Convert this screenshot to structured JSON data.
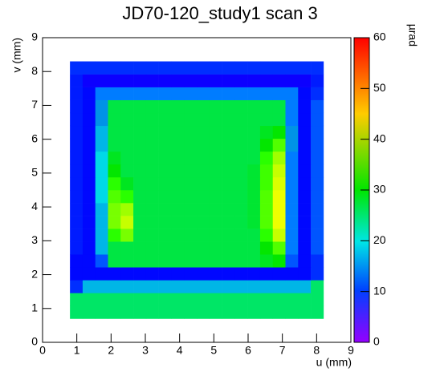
{
  "chart_data": {
    "type": "heatmap",
    "title": "JD70-120_study1 scan 3",
    "x_label": "u (mm)",
    "y_label": "v (mm)",
    "z_label": "µrad",
    "xlim": [
      0,
      9
    ],
    "ylim": [
      0,
      9
    ],
    "zlim": [
      0,
      60
    ],
    "xticks": [
      0,
      1,
      2,
      3,
      4,
      5,
      6,
      7,
      8,
      9
    ],
    "yticks": [
      0,
      1,
      2,
      3,
      4,
      5,
      6,
      7,
      8,
      9
    ],
    "zticks": [
      0,
      10,
      20,
      30,
      40,
      50,
      60
    ],
    "xbins": [
      0.8,
      1.17,
      1.54,
      1.91,
      2.28,
      2.65,
      3.02,
      3.39,
      3.76,
      4.13,
      4.5,
      4.87,
      5.24,
      5.61,
      5.98,
      6.35,
      6.72,
      7.09,
      7.46,
      7.83,
      8.2
    ],
    "ybins": [
      0.7,
      1.08,
      1.46,
      1.84,
      2.22,
      2.6,
      2.98,
      3.36,
      3.74,
      4.12,
      4.5,
      4.88,
      5.26,
      5.64,
      6.02,
      6.4,
      6.78,
      7.16,
      7.54,
      7.92,
      8.3
    ],
    "z": [
      [
        28,
        28,
        28,
        28,
        28,
        28,
        28,
        28,
        28,
        28,
        28,
        28,
        28,
        28,
        28,
        28,
        28,
        28,
        28,
        28
      ],
      [
        28,
        28,
        28,
        28,
        28,
        28,
        28,
        28,
        28,
        28,
        28,
        28,
        28,
        28,
        28,
        28,
        28,
        28,
        28,
        28
      ],
      [
        10,
        18,
        18,
        18,
        18,
        18,
        18,
        18,
        18,
        18,
        18,
        18,
        18,
        18,
        18,
        18,
        18,
        18,
        18,
        28
      ],
      [
        8,
        8,
        8,
        8,
        8,
        8,
        8,
        8,
        8,
        8,
        8,
        8,
        8,
        8,
        8,
        8,
        8,
        8,
        8,
        10
      ],
      [
        8,
        8,
        12,
        30,
        30,
        30,
        30,
        30,
        30,
        30,
        30,
        30,
        30,
        30,
        30,
        32,
        34,
        12,
        8,
        10
      ],
      [
        9,
        8,
        18,
        30,
        30,
        30,
        30,
        30,
        30,
        30,
        30,
        30,
        30,
        30,
        30,
        34,
        38,
        14,
        8,
        12
      ],
      [
        9,
        8,
        18,
        36,
        40,
        30,
        30,
        30,
        30,
        30,
        30,
        30,
        30,
        30,
        30,
        36,
        44,
        14,
        8,
        12
      ],
      [
        9,
        8,
        18,
        40,
        44,
        30,
        30,
        30,
        30,
        30,
        30,
        30,
        30,
        30,
        31,
        38,
        46,
        14,
        8,
        12
      ],
      [
        9,
        8,
        18,
        40,
        42,
        30,
        30,
        30,
        30,
        30,
        30,
        30,
        30,
        30,
        31,
        38,
        46,
        14,
        8,
        12
      ],
      [
        9,
        8,
        20,
        38,
        36,
        30,
        30,
        30,
        30,
        30,
        30,
        30,
        30,
        30,
        31,
        38,
        46,
        14,
        8,
        12
      ],
      [
        9,
        8,
        20,
        36,
        32,
        30,
        30,
        30,
        30,
        30,
        30,
        30,
        30,
        30,
        31,
        37,
        45,
        14,
        8,
        12
      ],
      [
        9,
        8,
        20,
        34,
        30,
        30,
        30,
        30,
        30,
        30,
        30,
        30,
        30,
        30,
        31,
        37,
        44,
        14,
        8,
        12
      ],
      [
        9,
        8,
        20,
        32,
        30,
        30,
        30,
        30,
        30,
        30,
        30,
        30,
        30,
        30,
        30,
        36,
        42,
        14,
        8,
        12
      ],
      [
        9,
        8,
        18,
        30,
        30,
        30,
        30,
        30,
        30,
        30,
        30,
        30,
        30,
        30,
        30,
        34,
        38,
        16,
        8,
        12
      ],
      [
        9,
        8,
        18,
        30,
        30,
        30,
        30,
        30,
        30,
        30,
        30,
        30,
        30,
        30,
        30,
        32,
        34,
        16,
        8,
        12
      ],
      [
        9,
        8,
        16,
        30,
        30,
        30,
        30,
        30,
        30,
        30,
        30,
        30,
        30,
        30,
        30,
        30,
        30,
        14,
        8,
        12
      ],
      [
        9,
        8,
        16,
        30,
        30,
        30,
        30,
        30,
        30,
        30,
        30,
        30,
        30,
        30,
        30,
        30,
        30,
        14,
        8,
        12
      ],
      [
        9,
        8,
        14,
        14,
        14,
        14,
        14,
        14,
        14,
        14,
        14,
        14,
        14,
        14,
        14,
        14,
        14,
        14,
        8,
        10
      ],
      [
        9,
        7,
        7,
        7,
        7,
        7,
        7,
        7,
        7,
        7,
        7,
        7,
        7,
        7,
        7,
        7,
        7,
        7,
        7,
        9
      ],
      [
        10,
        10,
        10,
        10,
        10,
        10,
        10,
        10,
        10,
        10,
        10,
        10,
        10,
        10,
        10,
        10,
        10,
        10,
        10,
        10
      ]
    ]
  }
}
